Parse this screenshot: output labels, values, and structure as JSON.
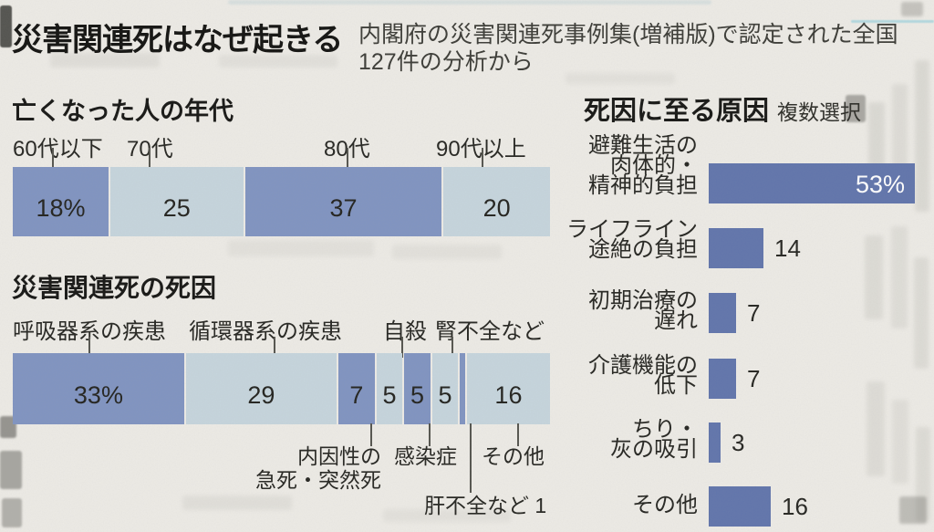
{
  "colors": {
    "paper": "#edebe6",
    "segment_dark": "#8094c1",
    "segment_light": "#c6d5dd",
    "accent_bar": "#6175ac",
    "value_text": "#23231f",
    "value_text_inverse": "#ffffff"
  },
  "header": {
    "title": "災害関連死はなぜ起きる",
    "subtitle_line1": "内閣府の災害関連死事例集(増補版)で認定された全国",
    "subtitle_line2": "127件の分析から"
  },
  "chart_data": [
    {
      "id": "age",
      "type": "bar",
      "orientation": "horizontal-stacked",
      "title": "亡くなった人の年代",
      "categories": [
        "60代以下",
        "70代",
        "80代",
        "90代以上"
      ],
      "category_lines": [
        [
          "60代以下"
        ],
        [
          "70代"
        ],
        [
          "80代"
        ],
        [
          "90代以上"
        ]
      ],
      "values": [
        18,
        25,
        37,
        20
      ],
      "value_labels": [
        "18%",
        "25",
        "37",
        "20"
      ],
      "unit": "percent",
      "total": 100,
      "legend": "none",
      "grid": false
    },
    {
      "id": "cause",
      "type": "bar",
      "orientation": "horizontal-stacked",
      "title": "災害関連死の死因",
      "categories": [
        "呼吸器系の疾患",
        "循環器系の疾患",
        "内因性の急死・突然死",
        "自殺",
        "感染症",
        "腎不全など",
        "肝不全など",
        "その他"
      ],
      "category_lines": [
        [
          "呼吸器系の疾患"
        ],
        [
          "循環器系の疾患"
        ],
        [
          "内因性の",
          "急死・突然死"
        ],
        [
          "自殺"
        ],
        [
          "感染症"
        ],
        [
          "腎不全など"
        ],
        [
          "肝不全など"
        ],
        [
          "その他"
        ]
      ],
      "callout_side": [
        "above",
        "above",
        "below",
        "above",
        "below",
        "above",
        "below",
        "below"
      ],
      "values": [
        33,
        29,
        7,
        5,
        5,
        5,
        1,
        16
      ],
      "value_labels": [
        "33%",
        "29",
        "7",
        "5",
        "5",
        "5",
        "",
        "16"
      ],
      "unit": "percent",
      "total": 101,
      "legend": "none",
      "grid": false
    },
    {
      "id": "reason",
      "type": "bar",
      "orientation": "horizontal",
      "title": "死因に至る原因",
      "subtitle": "複数選択",
      "categories": [
        "避難生活の肉体的・精神的負担",
        "ライフライン途絶の負担",
        "初期治療の遅れ",
        "介護機能の低下",
        "ちり・灰の吸引",
        "その他"
      ],
      "category_lines": [
        [
          "避難生活の",
          "肉体的・",
          "精神的負担"
        ],
        [
          "ライフライン",
          "途絶の負担"
        ],
        [
          "初期治療の",
          "遅れ"
        ],
        [
          "介護機能の",
          "低下"
        ],
        [
          "ちり・",
          "灰の吸引"
        ],
        [
          "その他"
        ]
      ],
      "values": [
        53,
        14,
        7,
        7,
        3,
        16
      ],
      "value_labels": [
        "53%",
        "14",
        "7",
        "7",
        "3",
        "16"
      ],
      "unit": "percent",
      "xlim": [
        0,
        55
      ],
      "legend": "none",
      "grid": false
    }
  ]
}
